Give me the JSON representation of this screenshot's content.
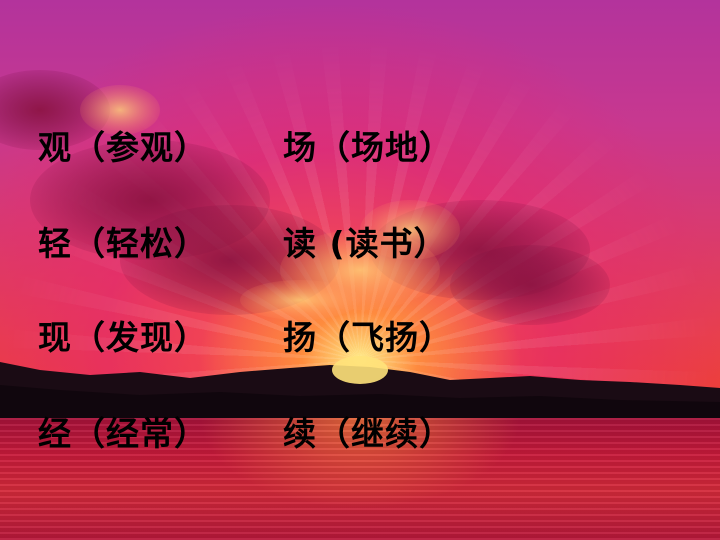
{
  "slide": {
    "words": [
      {
        "text": "观（参观）"
      },
      {
        "text": "场（场地）"
      },
      {
        "text": "轻（轻松）"
      },
      {
        "text": "读 (读书）"
      },
      {
        "text": "现（发现）"
      },
      {
        "text": "扬（飞扬）"
      },
      {
        "text": "经（经常）"
      },
      {
        "text": "续（继续）"
      }
    ],
    "text_color": "#000000",
    "background": {
      "sky_top": "#b3339c",
      "sky_bottom": "#ef3f2f",
      "sun_glow": "#fff58c",
      "water": "#c81a3a",
      "mountains": "#1a0b14"
    }
  }
}
